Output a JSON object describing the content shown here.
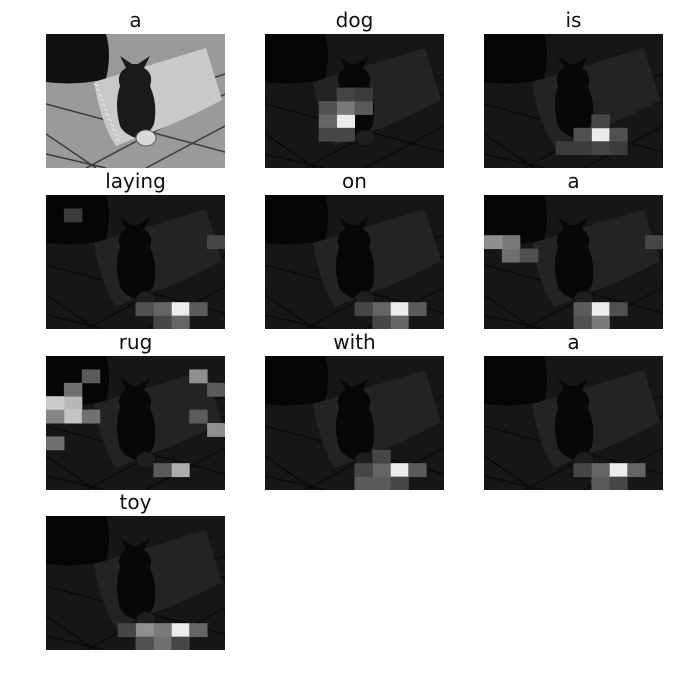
{
  "panels": [
    {
      "word": "a",
      "base": true,
      "hot": []
    },
    {
      "word": "dog",
      "base": false,
      "hot": [
        [
          4,
          6,
          1.0
        ],
        [
          3,
          6,
          0.35
        ],
        [
          4,
          5,
          0.45
        ],
        [
          5,
          5,
          0.3
        ],
        [
          3,
          5,
          0.25
        ],
        [
          4,
          4,
          0.2
        ],
        [
          5,
          4,
          0.15
        ],
        [
          3,
          7,
          0.2
        ],
        [
          4,
          7,
          0.2
        ]
      ]
    },
    {
      "word": "is",
      "base": false,
      "hot": [
        [
          6,
          7,
          1.0
        ],
        [
          5,
          7,
          0.25
        ],
        [
          7,
          7,
          0.25
        ],
        [
          6,
          6,
          0.2
        ],
        [
          6,
          8,
          0.2
        ],
        [
          5,
          8,
          0.15
        ],
        [
          7,
          8,
          0.15
        ],
        [
          4,
          8,
          0.15
        ]
      ]
    },
    {
      "word": "laying",
      "base": false,
      "hot": [
        [
          7,
          8,
          1.0
        ],
        [
          6,
          8,
          0.35
        ],
        [
          8,
          8,
          0.3
        ],
        [
          5,
          8,
          0.25
        ],
        [
          7,
          9,
          0.35
        ],
        [
          6,
          9,
          0.2
        ],
        [
          9,
          3,
          0.2
        ],
        [
          1,
          1,
          0.15
        ]
      ]
    },
    {
      "word": "on",
      "base": false,
      "hot": [
        [
          7,
          8,
          1.0
        ],
        [
          6,
          8,
          0.35
        ],
        [
          8,
          8,
          0.3
        ],
        [
          7,
          9,
          0.35
        ],
        [
          5,
          8,
          0.2
        ],
        [
          6,
          9,
          0.2
        ]
      ]
    },
    {
      "word": "a",
      "base": false,
      "hot": [
        [
          6,
          8,
          1.0
        ],
        [
          6,
          9,
          0.45
        ],
        [
          5,
          8,
          0.3
        ],
        [
          7,
          8,
          0.25
        ],
        [
          1,
          3,
          0.45
        ],
        [
          0,
          3,
          0.55
        ],
        [
          1,
          4,
          0.4
        ],
        [
          2,
          4,
          0.25
        ],
        [
          9,
          3,
          0.2
        ],
        [
          5,
          9,
          0.25
        ]
      ]
    },
    {
      "word": "rug",
      "base": false,
      "hot": [
        [
          0,
          3,
          0.85
        ],
        [
          1,
          3,
          0.75
        ],
        [
          1,
          4,
          0.8
        ],
        [
          0,
          4,
          0.5
        ],
        [
          2,
          4,
          0.4
        ],
        [
          9,
          5,
          0.55
        ],
        [
          8,
          1,
          0.55
        ],
        [
          7,
          8,
          0.7
        ],
        [
          6,
          8,
          0.3
        ],
        [
          2,
          1,
          0.3
        ],
        [
          9,
          2,
          0.3
        ],
        [
          1,
          2,
          0.4
        ],
        [
          8,
          4,
          0.3
        ],
        [
          0,
          6,
          0.4
        ]
      ]
    },
    {
      "word": "with",
      "base": false,
      "hot": [
        [
          7,
          8,
          1.0
        ],
        [
          6,
          8,
          0.35
        ],
        [
          8,
          8,
          0.3
        ],
        [
          5,
          9,
          0.3
        ],
        [
          6,
          9,
          0.3
        ],
        [
          7,
          9,
          0.2
        ],
        [
          5,
          8,
          0.2
        ],
        [
          6,
          7,
          0.2
        ]
      ]
    },
    {
      "word": "a",
      "base": false,
      "hot": [
        [
          7,
          8,
          1.0
        ],
        [
          6,
          8,
          0.35
        ],
        [
          8,
          8,
          0.35
        ],
        [
          5,
          8,
          0.2
        ],
        [
          6,
          9,
          0.3
        ],
        [
          7,
          9,
          0.2
        ]
      ]
    },
    {
      "word": "toy",
      "base": false,
      "hot": [
        [
          7,
          8,
          1.0
        ],
        [
          6,
          8,
          0.45
        ],
        [
          5,
          8,
          0.55
        ],
        [
          8,
          8,
          0.35
        ],
        [
          6,
          9,
          0.4
        ],
        [
          5,
          9,
          0.25
        ],
        [
          7,
          9,
          0.2
        ],
        [
          4,
          8,
          0.2
        ]
      ]
    }
  ]
}
